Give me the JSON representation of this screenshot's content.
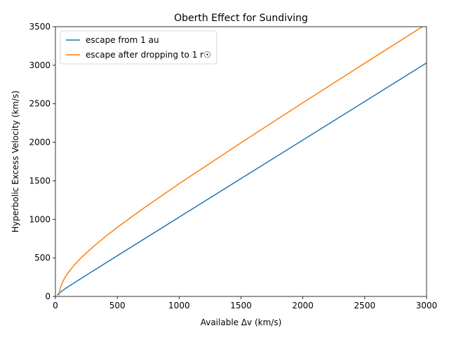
{
  "chart_data": {
    "type": "line",
    "title": "Oberth Effect for Sundiving",
    "x_label": "Available Δv (km/s)",
    "y_label": "Hyperbolic Excess Velocity (km/s)",
    "xlim": [
      0,
      3000
    ],
    "ylim": [
      0,
      3500
    ],
    "xticks": [
      0,
      500,
      1000,
      1500,
      2000,
      2500,
      3000
    ],
    "yticks": [
      0,
      500,
      1000,
      1500,
      2000,
      2500,
      3000,
      3500
    ],
    "legend": "upper left",
    "series": [
      {
        "name": "escape from 1 au",
        "color": "#1f77b4",
        "x": [
          15,
          25,
          50,
          100,
          200,
          500,
          1000,
          1500,
          2000,
          2500,
          3000
        ],
        "values": [
          15.3,
          35.1,
          67.8,
          122.8,
          225.9,
          528.1,
          1028.9,
          1529.2,
          2029.4,
          2529.4,
          3029.5
        ]
      },
      {
        "name": "escape after dropping to 1 r☉",
        "color": "#ff7f0e",
        "x": [
          30,
          35,
          50,
          75,
          100,
          150,
          200,
          300,
          400,
          500,
          700,
          1000,
          1500,
          2000,
          2500,
          3000
        ],
        "values": [
          15.7,
          80.3,
          159.3,
          240.6,
          302.7,
          403.7,
          489.1,
          637.8,
          771.0,
          895.5,
          1130.1,
          1462.8,
          1994.4,
          2513.1,
          3025.5,
          3534
        ]
      }
    ]
  }
}
